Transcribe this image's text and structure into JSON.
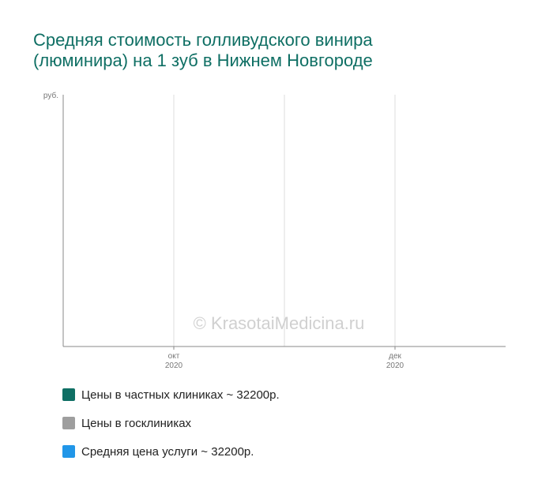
{
  "chart_data": {
    "type": "line",
    "title_lines": [
      "Средняя стоимость голливудского винира",
      "(люминира) на 1 зуб в Нижнем Новгороде"
    ],
    "ylabel": "руб.",
    "xlabel": "",
    "x_ticks": [
      {
        "month": "окт",
        "year": "2020"
      },
      {
        "month": "дек",
        "year": "2020"
      }
    ],
    "grid": true,
    "watermark": "© KrasotaiMedicina.ru",
    "series": [
      {
        "name": "Цены в частных клиниках ~ 32200р.",
        "color": "#0f6f64",
        "values": []
      },
      {
        "name": "Цены в госклиниках",
        "color": "#9e9e9e",
        "values": []
      },
      {
        "name": "Средняя цена услуги ~ 32200р.",
        "color": "#2196e8",
        "values": []
      }
    ],
    "legend_position": "bottom"
  }
}
